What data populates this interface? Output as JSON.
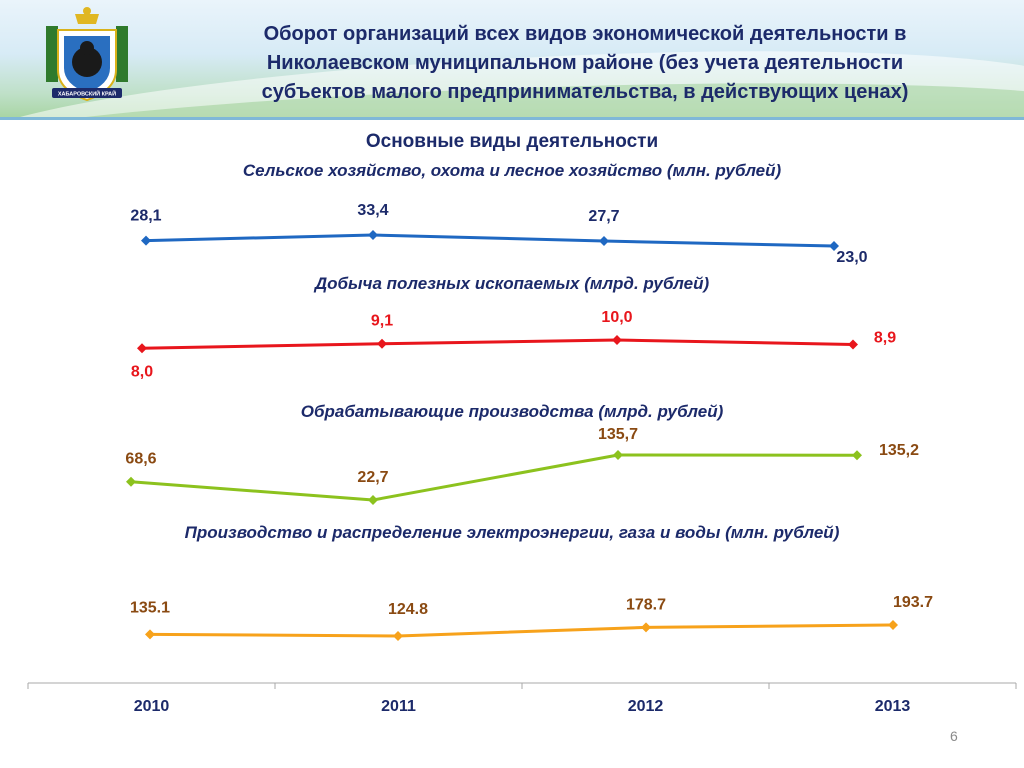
{
  "header": {
    "title_lines": [
      "Оборот организаций всех видов экономической деятельности в",
      "Николаевском муниципальном районе (без учета деятельности",
      "субъектов малого предпринимательства, в действующих ценах)"
    ],
    "emblem_text": "ХАБАРОВСКИЙ КРАЙ"
  },
  "subtitle": "Основные виды деятельности",
  "colors": {
    "blue": "#1f68c2",
    "red": "#e8161c",
    "green": "#8cc21e",
    "orange": "#f7a21b"
  },
  "chart_data": {
    "type": "line",
    "x": [
      "2010",
      "2011",
      "2012",
      "2013"
    ],
    "series": [
      {
        "name": "Сельское хозяйство, охота и лесное хозяйство (млн. рублей)",
        "values": [
          28.1,
          33.4,
          27.7,
          23.0
        ],
        "labels": [
          "28,1",
          "33,4",
          "27,7",
          "23,0"
        ]
      },
      {
        "name": "Добыча полезных ископаемых (млрд. рублей)",
        "values": [
          8.0,
          9.1,
          10.0,
          8.9
        ],
        "labels": [
          "8,0",
          "9,1",
          "10,0",
          "8,9"
        ]
      },
      {
        "name": "Обрабатывающие производства (млрд. рублей)",
        "values": [
          68.6,
          22.7,
          135.7,
          135.2
        ],
        "labels": [
          "68,6",
          "22,7",
          "135,7",
          "135,2"
        ]
      },
      {
        "name": "Производство и распределение электроэнергии, газа и воды (млн. рублей)",
        "values": [
          135.1,
          124.8,
          178.7,
          193.7
        ],
        "labels": [
          "135.1",
          "124.8",
          "178.7",
          "193.7"
        ]
      }
    ]
  },
  "page_number": "6"
}
